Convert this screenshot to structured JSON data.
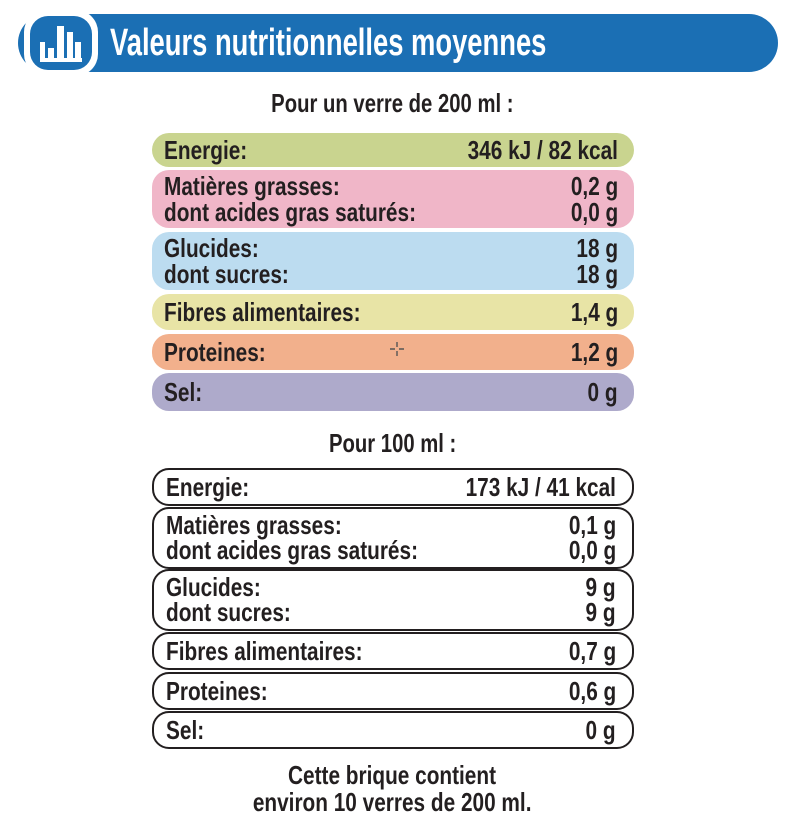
{
  "header": {
    "title": "Valeurs nutritionnelles moyennes",
    "icon": "bar-chart-icon",
    "color": "#1b6fb4"
  },
  "sections": [
    {
      "caption": "Pour un verre de 200 ml :",
      "rows": [
        {
          "color": "#c9d48f",
          "lines": [
            {
              "label": "Energie:",
              "value": "346 kJ / 82 kcal"
            }
          ]
        },
        {
          "color": "#f0b6c8",
          "lines": [
            {
              "label": "Matières grasses:",
              "value": "0,2 g"
            },
            {
              "label": "dont acides gras saturés:",
              "value": "0,0 g"
            }
          ]
        },
        {
          "color": "#bcdcf0",
          "lines": [
            {
              "label": "Glucides:",
              "value": "18 g"
            },
            {
              "label": "dont sucres:",
              "value": "18 g"
            }
          ]
        },
        {
          "color": "#e8e4a6",
          "lines": [
            {
              "label": "Fibres alimentaires:",
              "value": "1,4 g"
            }
          ]
        },
        {
          "color": "#f2b08c",
          "lines": [
            {
              "label": "Proteines:",
              "value": "1,2 g"
            }
          ]
        },
        {
          "color": "#aeaacb",
          "lines": [
            {
              "label": "Sel:",
              "value": "0 g"
            }
          ]
        }
      ]
    },
    {
      "caption": "Pour 100 ml :",
      "rows": [
        {
          "lines": [
            {
              "label": "Energie:",
              "value": "173 kJ / 41 kcal"
            }
          ]
        },
        {
          "lines": [
            {
              "label": "Matières grasses:",
              "value": "0,1 g"
            },
            {
              "label": "dont acides gras saturés:",
              "value": "0,0 g"
            }
          ]
        },
        {
          "lines": [
            {
              "label": "Glucides:",
              "value": "9 g"
            },
            {
              "label": "dont sucres:",
              "value": "9 g"
            }
          ]
        },
        {
          "lines": [
            {
              "label": "Fibres alimentaires:",
              "value": "0,7 g"
            }
          ]
        },
        {
          "lines": [
            {
              "label": "Proteines:",
              "value": "0,6 g"
            }
          ]
        },
        {
          "lines": [
            {
              "label": "Sel:",
              "value": "0 g"
            }
          ]
        }
      ]
    }
  ],
  "footer": {
    "line1": "Cette brique contient",
    "line2": "environ 10 verres de 200 ml."
  }
}
